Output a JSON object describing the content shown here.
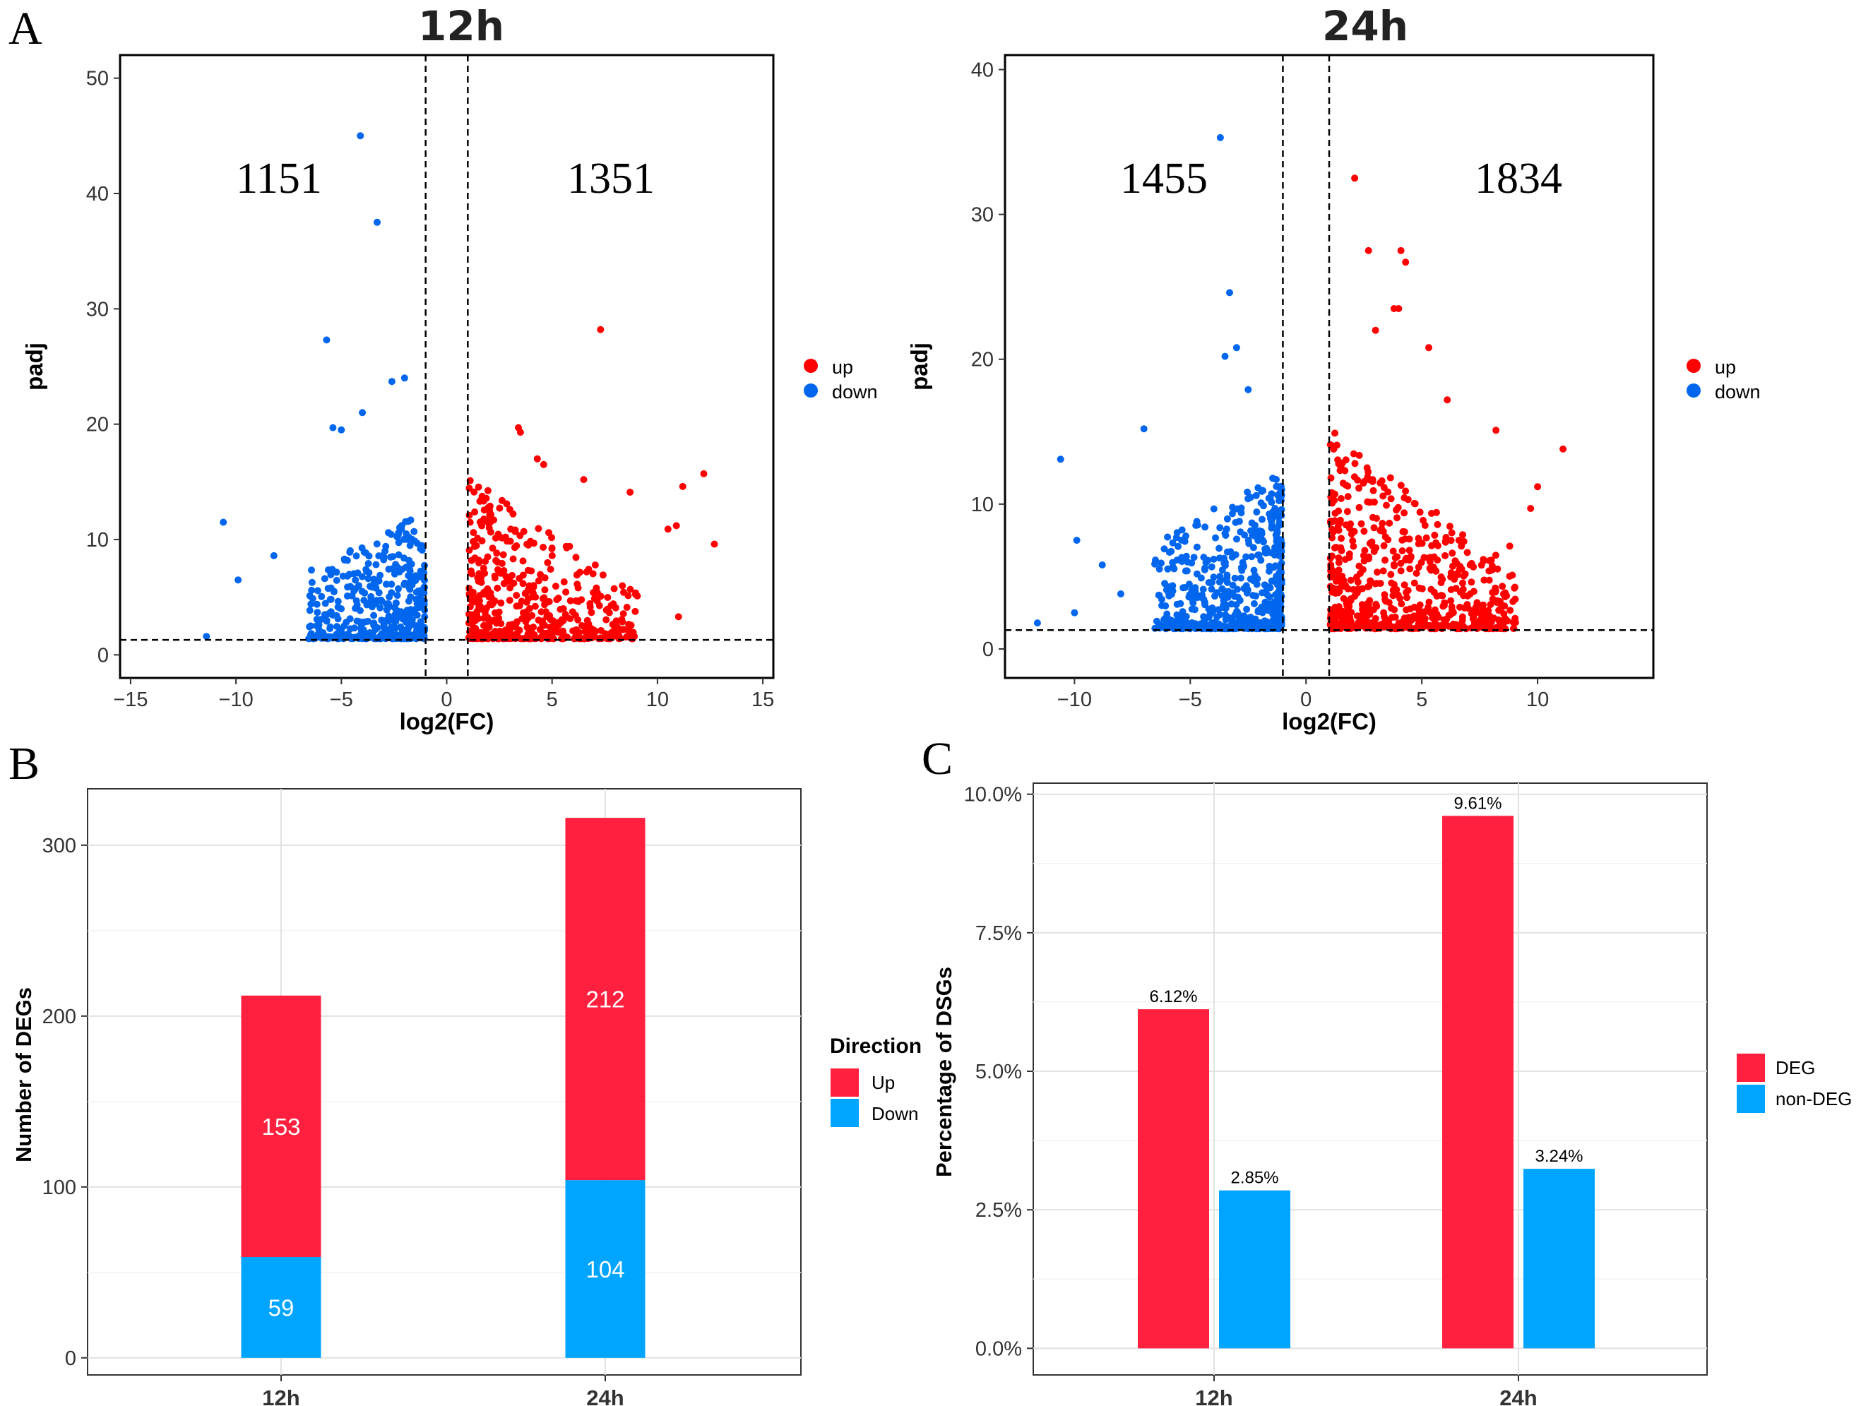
{
  "panel_letters": {
    "a": "A",
    "b": "B",
    "c": "C"
  },
  "colors": {
    "up_point": "#ff0000",
    "down_point": "#0066ee",
    "up_bar": "#ff2040",
    "down_bar": "#00a5ff"
  },
  "chart_data": [
    {
      "type": "scatter",
      "title": "12h",
      "xlabel": "log2(FC)",
      "ylabel": "padj",
      "xlim": [
        -15.5,
        15.5
      ],
      "ylim": [
        -2,
        52
      ],
      "xticks": [
        -15,
        -10,
        -5,
        0,
        5,
        10,
        15
      ],
      "yticks": [
        0,
        10,
        20,
        30,
        40,
        50
      ],
      "vlines": [
        -1,
        1
      ],
      "hline": 1.3,
      "annotations": [
        "1151",
        "1351"
      ],
      "legend": [
        "up",
        "down"
      ],
      "outliers_down": [
        [
          -4.1,
          45
        ],
        [
          -3.3,
          37.5
        ],
        [
          -5.7,
          27.3
        ],
        [
          -2.0,
          24
        ],
        [
          -2.6,
          23.7
        ],
        [
          -5.4,
          19.7
        ],
        [
          -5.0,
          19.5
        ],
        [
          -10.6,
          11.5
        ],
        [
          -8.2,
          8.6
        ],
        [
          -9.9,
          6.5
        ],
        [
          -11.4,
          1.6
        ],
        [
          -4.0,
          21
        ]
      ],
      "outliers_up": [
        [
          7.3,
          28.2
        ],
        [
          3.4,
          19.7
        ],
        [
          3.5,
          19.3
        ],
        [
          12.2,
          15.7
        ],
        [
          11.2,
          14.6
        ],
        [
          10.9,
          11.2
        ],
        [
          12.7,
          9.6
        ],
        [
          10.5,
          10.9
        ],
        [
          8.7,
          14.1
        ],
        [
          6.5,
          15.2
        ],
        [
          4.3,
          17.0
        ],
        [
          4.6,
          16.5
        ],
        [
          11.0,
          3.3
        ]
      ],
      "n_down": 420,
      "n_up": 520
    },
    {
      "type": "scatter",
      "title": "24h",
      "xlabel": "log2(FC)",
      "ylabel": "padj",
      "xlim": [
        -13,
        15
      ],
      "ylim": [
        -2,
        41
      ],
      "xticks": [
        -10,
        -5,
        0,
        5,
        10
      ],
      "yticks": [
        0,
        10,
        20,
        30,
        40
      ],
      "vlines": [
        -1,
        1
      ],
      "hline": 1.3,
      "annotations": [
        "1455",
        "1834"
      ],
      "legend": [
        "up",
        "down"
      ],
      "outliers_down": [
        [
          -3.7,
          35.3
        ],
        [
          -3.3,
          24.6
        ],
        [
          -3.0,
          20.8
        ],
        [
          -3.5,
          20.2
        ],
        [
          -7.0,
          15.2
        ],
        [
          -10.6,
          13.1
        ],
        [
          -9.9,
          7.5
        ],
        [
          -10.0,
          2.5
        ],
        [
          -11.6,
          1.8
        ],
        [
          -8.8,
          5.8
        ],
        [
          -8.0,
          3.8
        ],
        [
          -2.5,
          17.9
        ]
      ],
      "outliers_up": [
        [
          2.1,
          32.5
        ],
        [
          2.7,
          27.5
        ],
        [
          4.1,
          27.5
        ],
        [
          4.3,
          26.7
        ],
        [
          3.8,
          23.5
        ],
        [
          4.0,
          23.5
        ],
        [
          3.0,
          22.0
        ],
        [
          5.3,
          20.8
        ],
        [
          11.1,
          13.8
        ],
        [
          10.0,
          11.2
        ],
        [
          8.2,
          15.1
        ],
        [
          6.1,
          17.2
        ],
        [
          9.7,
          9.7
        ],
        [
          8.8,
          7.1
        ]
      ],
      "n_down": 520,
      "n_up": 640
    },
    {
      "type": "bar",
      "title": "",
      "xlabel": "",
      "ylabel": "Number of DEGs",
      "categories": [
        "12h",
        "24h"
      ],
      "series": [
        {
          "name": "Down",
          "values": [
            59,
            104
          ]
        },
        {
          "name": "Up",
          "values": [
            153,
            212
          ]
        }
      ],
      "stacked": true,
      "ylim": [
        -10,
        333
      ],
      "yticks": [
        0,
        100,
        200,
        300
      ],
      "legend_title": "Direction",
      "legend": [
        "Up",
        "Down"
      ]
    },
    {
      "type": "bar",
      "title": "",
      "xlabel": "",
      "ylabel": "Percentage of DSGs",
      "categories": [
        "12h",
        "24h"
      ],
      "series": [
        {
          "name": "DEG",
          "values": [
            6.12,
            9.61
          ]
        },
        {
          "name": "non-DEG",
          "values": [
            2.85,
            3.24
          ]
        }
      ],
      "value_labels": [
        [
          "6.12%",
          "9.61%"
        ],
        [
          "2.85%",
          "3.24%"
        ]
      ],
      "ylim": [
        -0.48,
        10.2
      ],
      "yticks": [
        0,
        2.5,
        5.0,
        7.5,
        10.0
      ],
      "ytick_labels": [
        "0.0%",
        "2.5%",
        "5.0%",
        "7.5%",
        "10.0%"
      ],
      "legend": [
        "DEG",
        "non-DEG"
      ]
    }
  ]
}
